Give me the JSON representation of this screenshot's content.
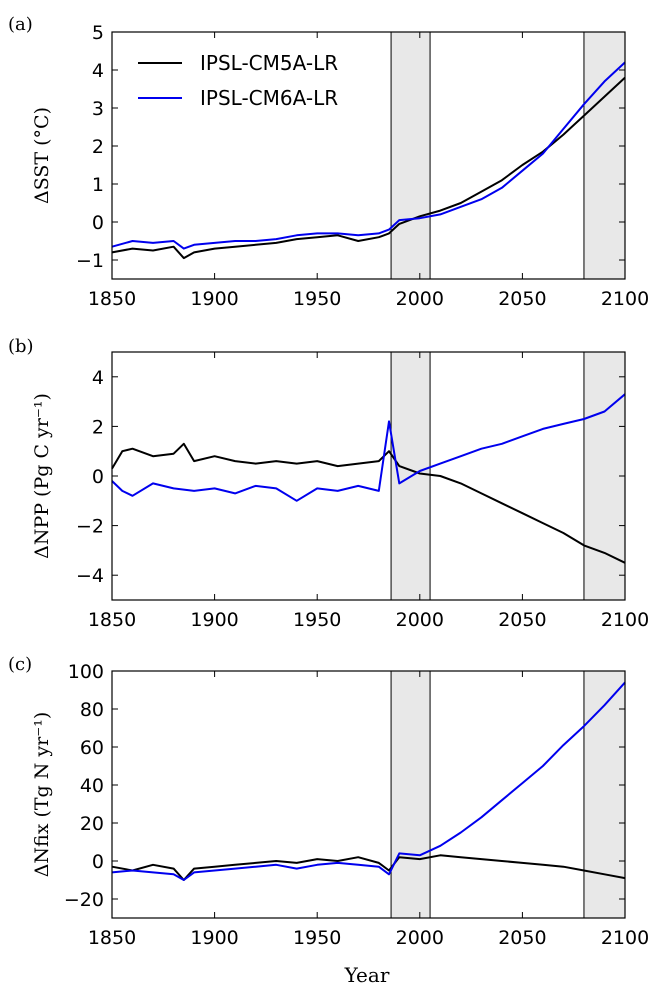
{
  "figure": {
    "xlabel": "Year",
    "legend": [
      "IPSL-CM5A-LR",
      "IPSL-CM6A-LR"
    ],
    "colors": {
      "cm5": "#000000",
      "cm6": "#0000ee",
      "shade": "#e8e8e8"
    }
  },
  "chart_data": [
    {
      "type": "line",
      "panel_label": "(a)",
      "ylabel": "ΔSST (°C)",
      "xlim": [
        1850,
        2100
      ],
      "ylim": [
        -1.5,
        5
      ],
      "xticks": [
        1850,
        1900,
        1950,
        2000,
        2050,
        2100
      ],
      "yticks": [
        -1,
        0,
        1,
        2,
        3,
        4,
        5
      ],
      "grid": false,
      "legend_position": "top-left",
      "shaded_periods": [
        [
          1986,
          2005
        ],
        [
          2080,
          2100
        ]
      ],
      "series": [
        {
          "name": "IPSL-CM5A-LR",
          "color": "#000000",
          "x": [
            1850,
            1860,
            1870,
            1880,
            1885,
            1890,
            1900,
            1910,
            1920,
            1930,
            1940,
            1950,
            1960,
            1970,
            1980,
            1985,
            1990,
            2000,
            2010,
            2020,
            2030,
            2040,
            2050,
            2060,
            2070,
            2080,
            2090,
            2100
          ],
          "values": [
            -0.8,
            -0.7,
            -0.75,
            -0.65,
            -0.95,
            -0.8,
            -0.7,
            -0.65,
            -0.6,
            -0.55,
            -0.45,
            -0.4,
            -0.35,
            -0.5,
            -0.4,
            -0.3,
            -0.05,
            0.15,
            0.3,
            0.5,
            0.8,
            1.1,
            1.5,
            1.85,
            2.3,
            2.8,
            3.3,
            3.8
          ]
        },
        {
          "name": "IPSL-CM6A-LR",
          "color": "#0000ee",
          "x": [
            1850,
            1860,
            1870,
            1880,
            1885,
            1890,
            1900,
            1910,
            1920,
            1930,
            1940,
            1950,
            1960,
            1970,
            1980,
            1985,
            1990,
            2000,
            2010,
            2020,
            2030,
            2040,
            2050,
            2060,
            2070,
            2080,
            2090,
            2100
          ],
          "values": [
            -0.65,
            -0.5,
            -0.55,
            -0.5,
            -0.7,
            -0.6,
            -0.55,
            -0.5,
            -0.5,
            -0.45,
            -0.35,
            -0.3,
            -0.3,
            -0.35,
            -0.3,
            -0.2,
            0.05,
            0.1,
            0.2,
            0.4,
            0.6,
            0.9,
            1.35,
            1.8,
            2.45,
            3.1,
            3.7,
            4.2
          ]
        }
      ]
    },
    {
      "type": "line",
      "panel_label": "(b)",
      "ylabel": "ΔNPP (Pg C yr⁻¹)",
      "xlim": [
        1850,
        2100
      ],
      "ylim": [
        -5,
        5
      ],
      "xticks": [
        1850,
        1900,
        1950,
        2000,
        2050,
        2100
      ],
      "yticks": [
        -4,
        -2,
        0,
        2,
        4
      ],
      "grid": false,
      "shaded_periods": [
        [
          1986,
          2005
        ],
        [
          2080,
          2100
        ]
      ],
      "series": [
        {
          "name": "IPSL-CM5A-LR",
          "color": "#000000",
          "x": [
            1850,
            1855,
            1860,
            1870,
            1880,
            1885,
            1890,
            1900,
            1910,
            1920,
            1930,
            1940,
            1950,
            1960,
            1970,
            1980,
            1985,
            1990,
            2000,
            2010,
            2020,
            2030,
            2040,
            2050,
            2060,
            2070,
            2080,
            2090,
            2100
          ],
          "values": [
            0.3,
            1.0,
            1.1,
            0.8,
            0.9,
            1.3,
            0.6,
            0.8,
            0.6,
            0.5,
            0.6,
            0.5,
            0.6,
            0.4,
            0.5,
            0.6,
            1.0,
            0.4,
            0.1,
            0.0,
            -0.3,
            -0.7,
            -1.1,
            -1.5,
            -1.9,
            -2.3,
            -2.8,
            -3.1,
            -3.5
          ]
        },
        {
          "name": "IPSL-CM6A-LR",
          "color": "#0000ee",
          "x": [
            1850,
            1855,
            1860,
            1870,
            1880,
            1890,
            1900,
            1910,
            1920,
            1930,
            1940,
            1950,
            1960,
            1970,
            1980,
            1985,
            1990,
            2000,
            2010,
            2020,
            2030,
            2040,
            2050,
            2060,
            2070,
            2080,
            2090,
            2100
          ],
          "values": [
            -0.2,
            -0.6,
            -0.8,
            -0.3,
            -0.5,
            -0.6,
            -0.5,
            -0.7,
            -0.4,
            -0.5,
            -1.0,
            -0.5,
            -0.6,
            -0.4,
            -0.6,
            2.2,
            -0.3,
            0.2,
            0.5,
            0.8,
            1.1,
            1.3,
            1.6,
            1.9,
            2.1,
            2.3,
            2.6,
            3.3
          ]
        }
      ]
    },
    {
      "type": "line",
      "panel_label": "(c)",
      "ylabel": "ΔNfix (Tg N yr⁻¹)",
      "xlim": [
        1850,
        2100
      ],
      "ylim": [
        -30,
        100
      ],
      "xticks": [
        1850,
        1900,
        1950,
        2000,
        2050,
        2100
      ],
      "yticks": [
        -20,
        0,
        20,
        40,
        60,
        80,
        100
      ],
      "grid": false,
      "shaded_periods": [
        [
          1986,
          2005
        ],
        [
          2080,
          2100
        ]
      ],
      "series": [
        {
          "name": "IPSL-CM5A-LR",
          "color": "#000000",
          "x": [
            1850,
            1860,
            1870,
            1880,
            1885,
            1890,
            1900,
            1910,
            1920,
            1930,
            1940,
            1950,
            1960,
            1970,
            1980,
            1985,
            1990,
            2000,
            2010,
            2020,
            2030,
            2040,
            2050,
            2060,
            2070,
            2080,
            2090,
            2100
          ],
          "values": [
            -3,
            -5,
            -2,
            -4,
            -10,
            -4,
            -3,
            -2,
            -1,
            0,
            -1,
            1,
            0,
            2,
            -1,
            -5,
            2,
            1,
            3,
            2,
            1,
            0,
            -1,
            -2,
            -3,
            -5,
            -7,
            -9
          ]
        },
        {
          "name": "IPSL-CM6A-LR",
          "color": "#0000ee",
          "x": [
            1850,
            1860,
            1870,
            1880,
            1885,
            1890,
            1900,
            1910,
            1920,
            1930,
            1940,
            1950,
            1960,
            1970,
            1980,
            1985,
            1990,
            2000,
            2010,
            2020,
            2030,
            2040,
            2050,
            2060,
            2070,
            2080,
            2090,
            2100
          ],
          "values": [
            -6,
            -5,
            -6,
            -7,
            -10,
            -6,
            -5,
            -4,
            -3,
            -2,
            -4,
            -2,
            -1,
            -2,
            -3,
            -7,
            4,
            3,
            8,
            15,
            23,
            32,
            41,
            50,
            61,
            71,
            82,
            94
          ]
        }
      ]
    }
  ]
}
